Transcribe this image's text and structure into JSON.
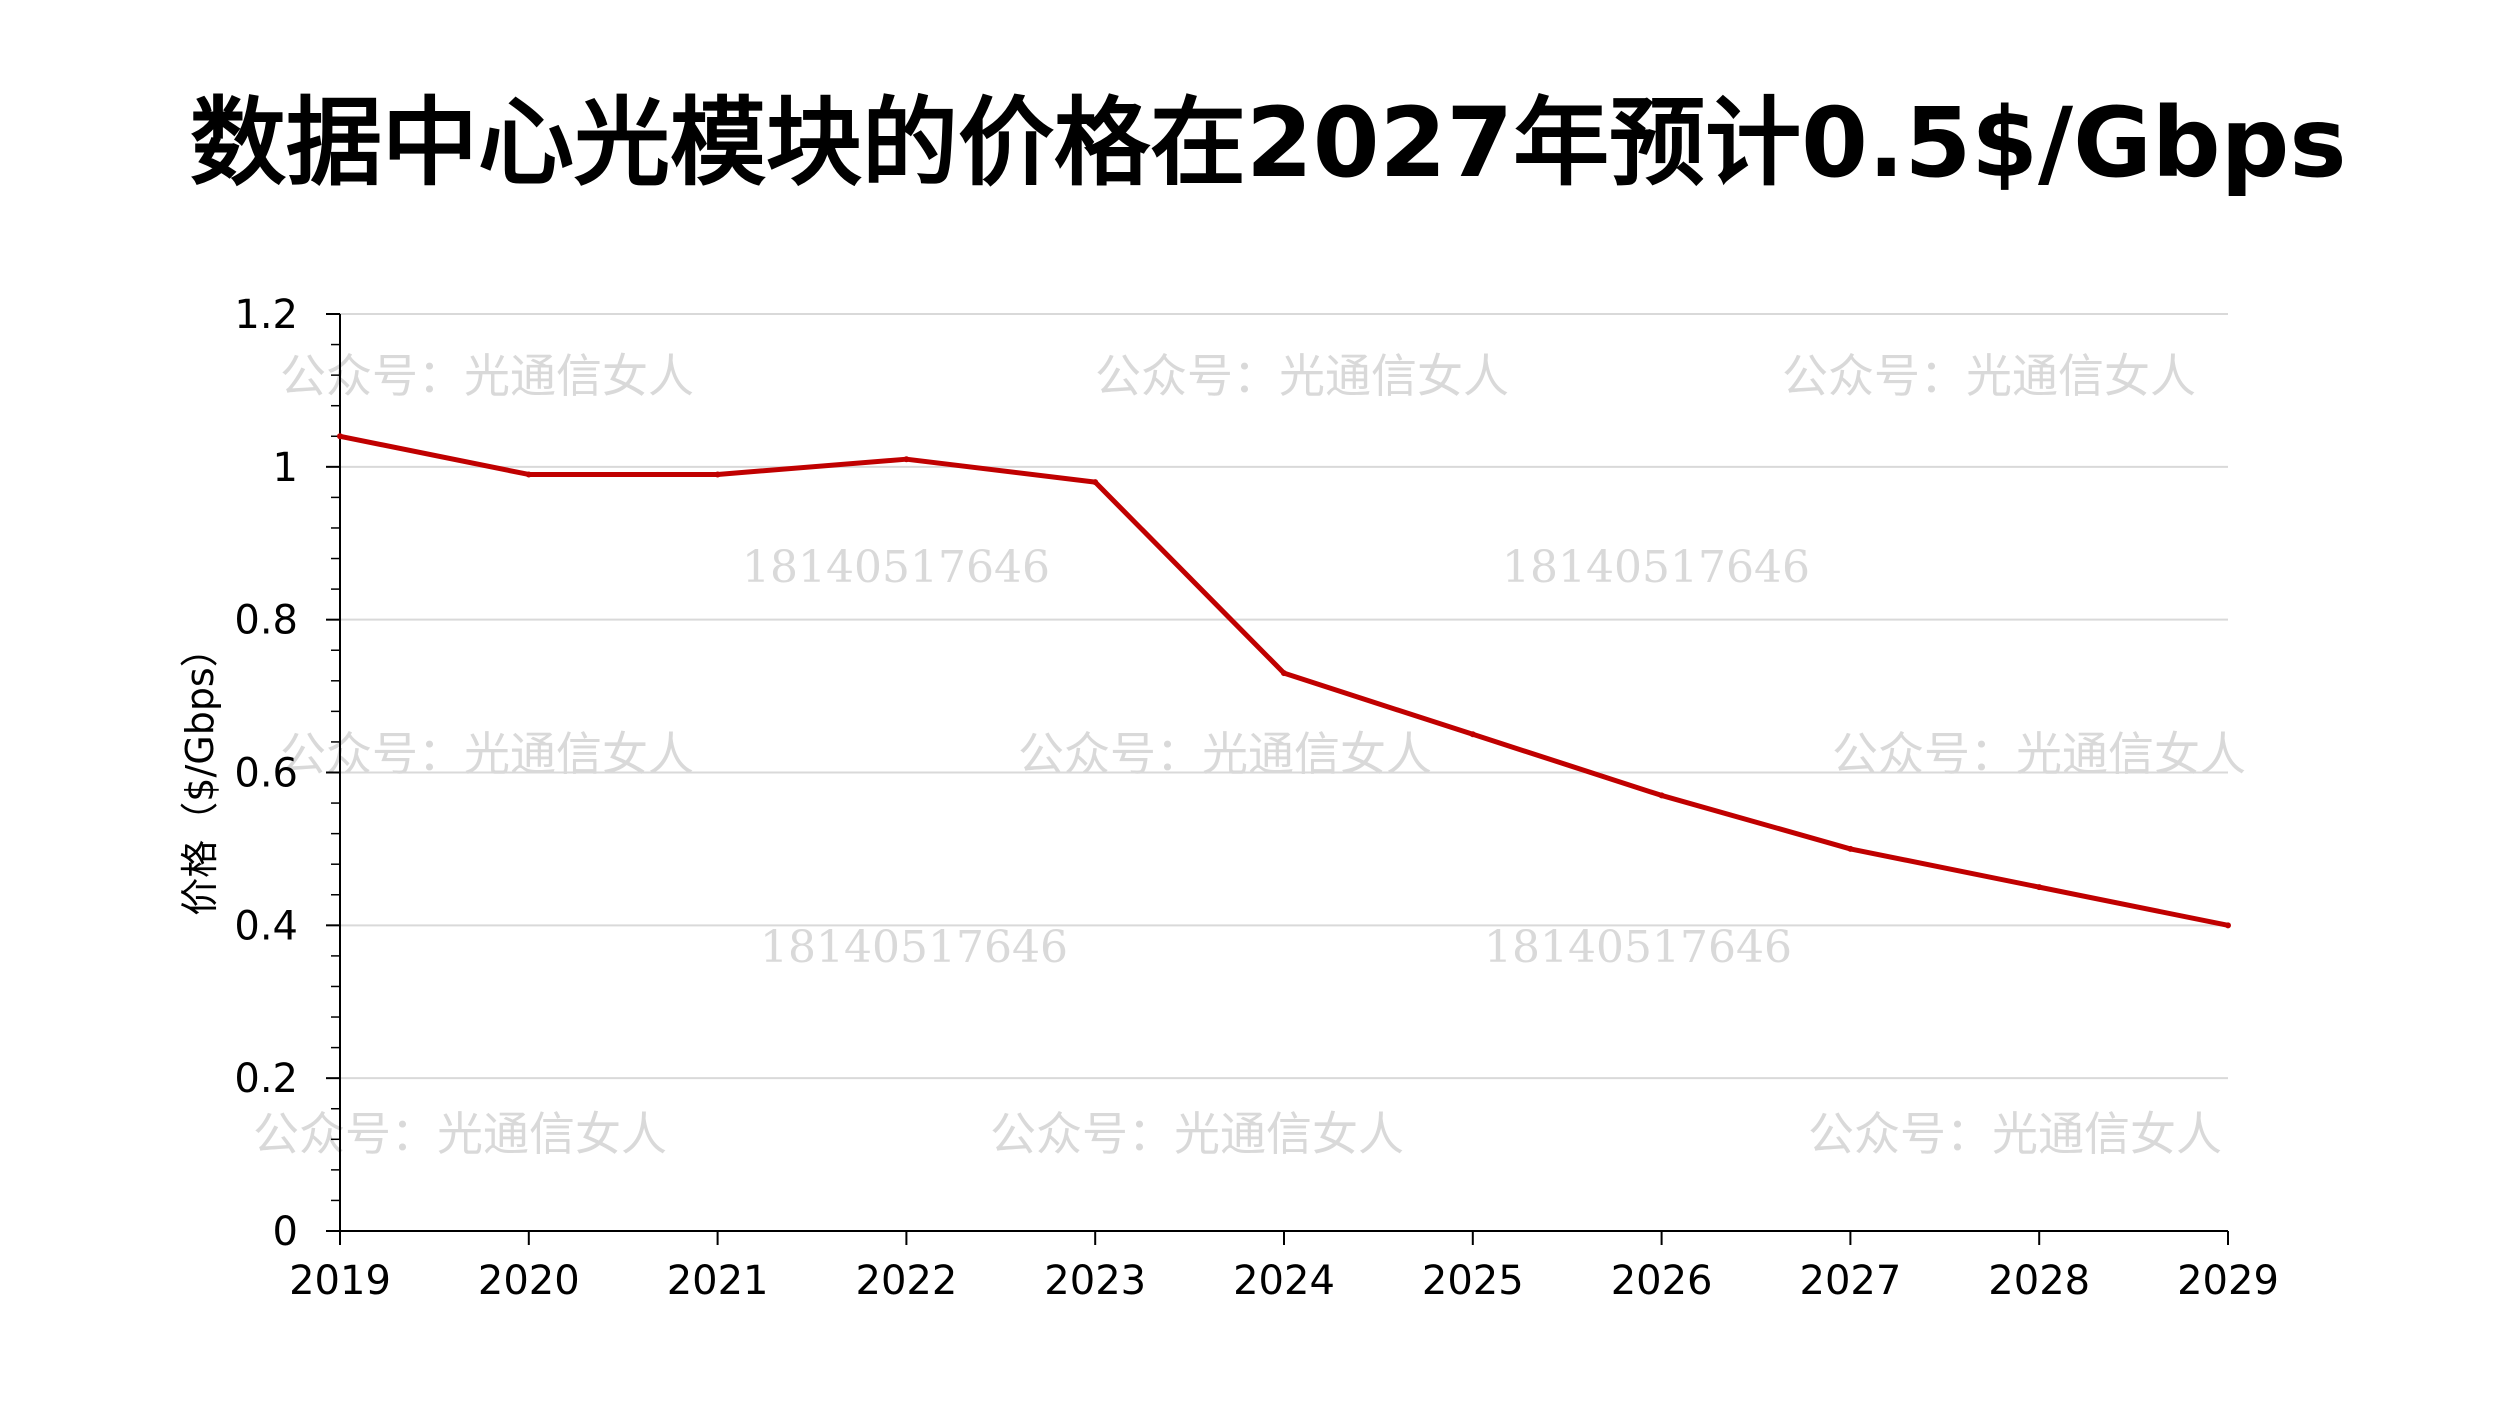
{
  "chart_data": {
    "type": "line",
    "title": "数据中心光模块的价格在2027年预计0.5$/Gbps",
    "xlabel": "",
    "ylabel": "价格（$/Gbps）",
    "x": [
      "2019",
      "2020",
      "2021",
      "2022",
      "2023",
      "2024",
      "2025",
      "2026",
      "2027",
      "2028",
      "2029"
    ],
    "series": [
      {
        "name": "",
        "values": [
          1.04,
          0.99,
          0.99,
          1.01,
          0.98,
          0.73,
          0.65,
          0.57,
          0.5,
          0.45,
          0.4
        ],
        "color": "#c00000"
      }
    ],
    "ylim": [
      0,
      1.2
    ],
    "yticks": [
      0,
      0.2,
      0.4,
      0.6,
      0.8,
      1,
      1.2
    ],
    "ytick_labels": [
      "0",
      "0.2",
      "0.4",
      "0.6",
      "0.8",
      "1",
      "1.2"
    ],
    "y_minor_step": 0.04,
    "grid": true,
    "legend": "none"
  },
  "watermarks": {
    "name": "公众号：光通信女人",
    "number": "18140517646"
  },
  "colors": {
    "line": "#c00000",
    "grid": "#d9d9d9",
    "axis": "#000000",
    "watermark": "#d9d9d9"
  }
}
